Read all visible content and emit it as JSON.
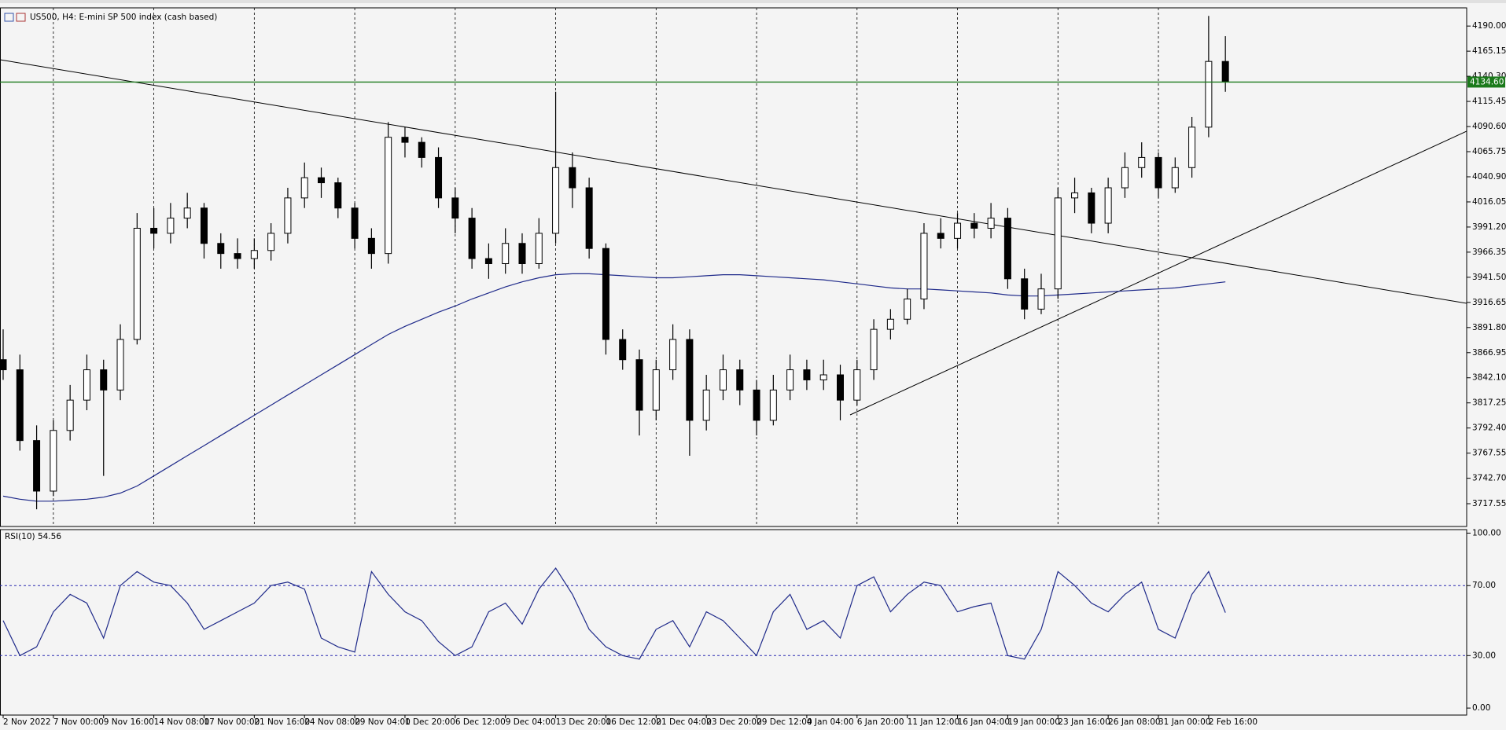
{
  "chart_data": [
    {
      "type": "candlestick",
      "title": "US500, H4: E-mini SP 500 index (cash based)",
      "categories": [
        "2 Nov 2022",
        null,
        null,
        "7 Nov 00:00",
        null,
        null,
        "9 Nov 16:00",
        null,
        null,
        "14 Nov 08:00",
        null,
        null,
        "17 Nov 00:00",
        null,
        null,
        "21 Nov 16:00",
        null,
        null,
        "24 Nov 08:00",
        null,
        null,
        "29 Nov 04:00",
        null,
        null,
        "1 Dec 20:00",
        null,
        null,
        "6 Dec 12:00",
        null,
        null,
        "9 Dec 04:00",
        null,
        null,
        "13 Dec 20:00",
        null,
        null,
        "16 Dec 12:00",
        null,
        null,
        "21 Dec 04:00",
        null,
        null,
        "23 Dec 20:00",
        null,
        null,
        "29 Dec 12:00",
        null,
        null,
        "4 Jan 04:00",
        null,
        null,
        "6 Jan 20:00",
        null,
        null,
        "11 Jan 12:00",
        null,
        null,
        "16 Jan 04:00",
        null,
        null,
        "19 Jan 00:00",
        null,
        null,
        "23 Jan 16:00",
        null,
        null,
        "26 Jan 08:00",
        null,
        null,
        "31 Jan 00:00",
        null,
        null,
        "2 Feb 16:00",
        null
      ],
      "open": [
        3860,
        3850,
        3780,
        3730,
        3790,
        3820,
        3850,
        3830,
        3880,
        3990,
        3985,
        4000,
        4010,
        3975,
        3965,
        3960,
        3968,
        3985,
        4020,
        4040,
        4035,
        4010,
        3980,
        3965,
        4080,
        4075,
        4060,
        4020,
        4000,
        3960,
        3955,
        3975,
        3955,
        3985,
        4050,
        4030,
        3970,
        3880,
        3860,
        3810,
        3850,
        3880,
        3800,
        3830,
        3850,
        3830,
        3800,
        3830,
        3850,
        3840,
        3845,
        3820,
        3850,
        3890,
        3900,
        3920,
        3985,
        3980,
        3995,
        3990,
        4000,
        3940,
        3910,
        3930,
        4020,
        4025,
        3995,
        4030,
        4050,
        4060,
        4030,
        4050,
        4090,
        4155
      ],
      "high": [
        3890,
        3865,
        3795,
        3800,
        3835,
        3865,
        3860,
        3895,
        4005,
        4010,
        4015,
        4025,
        4015,
        3985,
        3980,
        3980,
        3995,
        4030,
        4055,
        4050,
        4040,
        4015,
        3990,
        4095,
        4090,
        4080,
        4070,
        4030,
        4010,
        3975,
        3990,
        3985,
        4000,
        4125,
        4065,
        4040,
        3975,
        3890,
        3870,
        3860,
        3895,
        3890,
        3845,
        3865,
        3860,
        3840,
        3845,
        3865,
        3860,
        3860,
        3855,
        3860,
        3900,
        3910,
        3930,
        3995,
        4000,
        4005,
        4005,
        4015,
        4010,
        3950,
        3945,
        4030,
        4040,
        4030,
        4040,
        4065,
        4075,
        4065,
        4060,
        4100,
        4200,
        4180
      ],
      "low": [
        3840,
        3770,
        3712,
        3725,
        3780,
        3810,
        3745,
        3820,
        3875,
        3970,
        3975,
        3990,
        3960,
        3950,
        3950,
        3950,
        3958,
        3975,
        4010,
        4020,
        4000,
        3970,
        3950,
        3955,
        4060,
        4050,
        4010,
        3985,
        3950,
        3940,
        3945,
        3945,
        3950,
        3975,
        4010,
        3960,
        3865,
        3850,
        3785,
        3800,
        3840,
        3765,
        3790,
        3820,
        3815,
        3785,
        3795,
        3820,
        3830,
        3830,
        3800,
        3815,
        3840,
        3880,
        3895,
        3910,
        3970,
        3970,
        3980,
        3980,
        3930,
        3900,
        3905,
        3920,
        4005,
        3985,
        3985,
        4020,
        4040,
        4020,
        4025,
        4040,
        4080,
        4125
      ],
      "close": [
        3850,
        3780,
        3730,
        3790,
        3820,
        3850,
        3830,
        3880,
        3990,
        3985,
        4000,
        4010,
        3975,
        3965,
        3960,
        3968,
        3985,
        4020,
        4040,
        4035,
        4010,
        3980,
        3965,
        4080,
        4075,
        4060,
        4020,
        4000,
        3960,
        3955,
        3975,
        3955,
        3985,
        4050,
        4030,
        3970,
        3880,
        3860,
        3810,
        3850,
        3880,
        3800,
        3830,
        3850,
        3830,
        3800,
        3830,
        3850,
        3840,
        3845,
        3820,
        3850,
        3890,
        3900,
        3920,
        3985,
        3980,
        3995,
        3990,
        4000,
        3940,
        3910,
        3930,
        4020,
        4025,
        3995,
        4030,
        4050,
        4060,
        4030,
        4050,
        4090,
        4155,
        4134.6
      ],
      "lines": [
        {
          "color": "#1f2a8a",
          "values": [
            3725,
            3722,
            3720,
            3720,
            3721,
            3722,
            3724,
            3728,
            3735,
            3745,
            3755,
            3765,
            3775,
            3785,
            3795,
            3805,
            3815,
            3825,
            3835,
            3845,
            3855,
            3865,
            3875,
            3885,
            3893,
            3900,
            3907,
            3913,
            3920,
            3926,
            3932,
            3937,
            3941,
            3944,
            3945,
            3945,
            3944,
            3943,
            3942,
            3941,
            3941,
            3942,
            3943,
            3944,
            3944,
            3943,
            3942,
            3941,
            3940,
            3939,
            3937,
            3935,
            3933,
            3931,
            3930,
            3930,
            3929,
            3928,
            3927,
            3926,
            3924,
            3923,
            3923,
            3924,
            3925,
            3926,
            3927,
            3928,
            3929,
            3930,
            3931,
            3933,
            3935,
            3937
          ]
        }
      ],
      "ylim": [
        3695,
        4208
      ],
      "yticks": [
        {
          "value": 4190,
          "label": "4190.00"
        },
        4165.15,
        {
          "value": 4140.3,
          "label": "4140.30"
        },
        4115.45,
        {
          "value": 4090.6,
          "label": "4090.60"
        },
        4065.75,
        {
          "value": 4040.9,
          "label": "4040.90"
        },
        4016.05,
        {
          "value": 3991.2,
          "label": "3991.20"
        },
        3966.35,
        {
          "value": 3941.5,
          "label": "3941.50"
        },
        3916.65,
        {
          "value": 3891.8,
          "label": "3891.80"
        },
        3866.95,
        {
          "value": 3842.1,
          "label": "3842.10"
        },
        3817.25,
        {
          "value": 3792.4,
          "label": "3792.40"
        },
        3767.55,
        {
          "value": 3742.7,
          "label": "3742.70"
        },
        3717.55
      ],
      "price_line": {
        "value": 4134.6,
        "label": "4134.60",
        "color": "#1b7a1b"
      },
      "grid": true
    },
    {
      "type": "line",
      "title": "RSI(10) 54.56",
      "color": "#1f2a8a",
      "values": [
        50,
        30,
        35,
        55,
        65,
        60,
        40,
        70,
        78,
        72,
        70,
        60,
        45,
        50,
        55,
        60,
        70,
        72,
        68,
        40,
        35,
        32,
        78,
        65,
        55,
        50,
        38,
        30,
        35,
        55,
        60,
        48,
        68,
        80,
        65,
        45,
        35,
        30,
        28,
        45,
        50,
        35,
        55,
        50,
        40,
        30,
        55,
        65,
        45,
        50,
        40,
        70,
        75,
        55,
        65,
        72,
        70,
        55,
        58,
        60,
        30,
        28,
        45,
        78,
        70,
        60,
        55,
        65,
        72,
        45,
        40,
        65,
        78,
        54.56
      ],
      "ylim": [
        -4,
        102
      ],
      "yticks": [
        {
          "value": 100,
          "label": "100.00"
        },
        {
          "value": 70,
          "label": "70.00"
        },
        {
          "value": 30,
          "label": "30.00"
        },
        {
          "value": 0,
          "label": "0.00"
        }
      ],
      "levels": [
        70,
        30
      ],
      "level_color": "#2a2ab0"
    }
  ]
}
